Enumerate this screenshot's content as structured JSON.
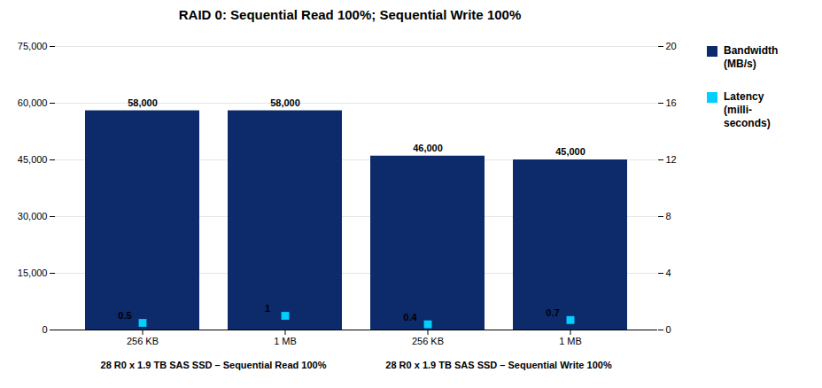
{
  "chart_data": {
    "type": "bar",
    "title": "RAID 0: Sequential Read 100%; Sequential Write 100%",
    "categories": [
      "256 KB",
      "1 MB",
      "256 KB",
      "1 MB"
    ],
    "series": [
      {
        "name": "Bandwidth\n(MB/s)",
        "type": "bar",
        "color": "#0D2B6B",
        "values": [
          58000,
          58000,
          46000,
          45000
        ],
        "value_labels": [
          "58,000",
          "58,000",
          "46,000",
          "45,000"
        ]
      },
      {
        "name": "Latency\n(milli-\nseconds)",
        "type": "scatter",
        "marker": "square",
        "axis": "y2",
        "color": "#00CFFF",
        "values": [
          0.5,
          1.0,
          0.4,
          0.7
        ]
      }
    ],
    "ylim": [
      0,
      75000
    ],
    "yticks": [
      0,
      {
        "value": 15000,
        "label": "15,000"
      },
      {
        "value": 30000,
        "label": "30,000"
      },
      {
        "value": 45000,
        "label": "45,000"
      },
      {
        "value": 60000,
        "label": "60,000"
      },
      {
        "value": 75000,
        "label": "75,000"
      }
    ],
    "y2lim": [
      0,
      20
    ],
    "y2ticks": [
      0,
      4,
      8,
      12,
      16,
      20
    ],
    "grid": true,
    "data_labels": true,
    "legend": "right",
    "annotations": [
      "28 R0 x 1.9 TB SAS SSD – Sequential Read 100%",
      "28 R0 x 1.9 TB SAS SSD – Sequential Write 100%"
    ]
  }
}
